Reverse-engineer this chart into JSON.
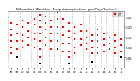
{
  "title": "Milwaukee Weather  Evapotranspiration  per Day (Inches)",
  "background_color": "#ffffff",
  "plot_bg_color": "#ffffff",
  "grid_color": "#888888",
  "ylim": [
    0.0,
    0.28
  ],
  "xlim": [
    -0.5,
    19.5
  ],
  "num_years": 20,
  "legend_label": "ET",
  "legend_color": "#ff0000",
  "red_dots": [
    [
      0,
      0.22
    ],
    [
      0,
      0.19
    ],
    [
      0,
      0.16
    ],
    [
      0,
      0.13
    ],
    [
      0,
      0.1
    ],
    [
      0,
      0.07
    ],
    [
      1,
      0.21
    ],
    [
      1,
      0.17
    ],
    [
      1,
      0.13
    ],
    [
      1,
      0.09
    ],
    [
      2,
      0.23
    ],
    [
      2,
      0.2
    ],
    [
      2,
      0.16
    ],
    [
      2,
      0.13
    ],
    [
      2,
      0.1
    ],
    [
      3,
      0.22
    ],
    [
      3,
      0.18
    ],
    [
      3,
      0.15
    ],
    [
      3,
      0.11
    ],
    [
      4,
      0.24
    ],
    [
      4,
      0.21
    ],
    [
      4,
      0.17
    ],
    [
      4,
      0.14
    ],
    [
      4,
      0.1
    ],
    [
      5,
      0.26
    ],
    [
      5,
      0.23
    ],
    [
      5,
      0.2
    ],
    [
      5,
      0.17
    ],
    [
      5,
      0.13
    ],
    [
      5,
      0.09
    ],
    [
      5,
      0.05
    ],
    [
      6,
      0.25
    ],
    [
      6,
      0.22
    ],
    [
      6,
      0.19
    ],
    [
      6,
      0.15
    ],
    [
      6,
      0.11
    ],
    [
      7,
      0.23
    ],
    [
      7,
      0.2
    ],
    [
      7,
      0.17
    ],
    [
      7,
      0.13
    ],
    [
      7,
      0.09
    ],
    [
      8,
      0.27
    ],
    [
      8,
      0.24
    ],
    [
      8,
      0.2
    ],
    [
      8,
      0.17
    ],
    [
      8,
      0.13
    ],
    [
      9,
      0.24
    ],
    [
      9,
      0.2
    ],
    [
      9,
      0.16
    ],
    [
      9,
      0.12
    ],
    [
      9,
      0.08
    ],
    [
      10,
      0.22
    ],
    [
      10,
      0.18
    ],
    [
      10,
      0.15
    ],
    [
      10,
      0.12
    ],
    [
      10,
      0.08
    ],
    [
      10,
      0.05
    ],
    [
      11,
      0.2
    ],
    [
      11,
      0.17
    ],
    [
      11,
      0.14
    ],
    [
      11,
      0.1
    ],
    [
      11,
      0.07
    ],
    [
      12,
      0.21
    ],
    [
      12,
      0.18
    ],
    [
      12,
      0.14
    ],
    [
      12,
      0.11
    ],
    [
      13,
      0.18
    ],
    [
      13,
      0.15
    ],
    [
      13,
      0.12
    ],
    [
      13,
      0.09
    ],
    [
      14,
      0.16
    ],
    [
      14,
      0.13
    ],
    [
      14,
      0.1
    ],
    [
      14,
      0.07
    ],
    [
      15,
      0.19
    ],
    [
      15,
      0.16
    ],
    [
      15,
      0.13
    ],
    [
      15,
      0.1
    ],
    [
      15,
      0.07
    ],
    [
      16,
      0.17
    ],
    [
      16,
      0.14
    ],
    [
      16,
      0.11
    ],
    [
      16,
      0.08
    ],
    [
      17,
      0.15
    ],
    [
      17,
      0.12
    ],
    [
      17,
      0.09
    ],
    [
      18,
      0.16
    ],
    [
      18,
      0.13
    ],
    [
      18,
      0.1
    ],
    [
      18,
      0.07
    ],
    [
      19,
      0.14
    ],
    [
      19,
      0.11
    ],
    [
      19,
      0.08
    ]
  ],
  "black_dots": [
    [
      1,
      0.05
    ],
    [
      5,
      0.02
    ],
    [
      8,
      0.09
    ],
    [
      10,
      0.02
    ],
    [
      14,
      0.03
    ],
    [
      19,
      0.05
    ]
  ],
  "x_labels": [
    "98",
    "99",
    "00",
    "01",
    "02",
    "03",
    "04",
    "05",
    "06",
    "07",
    "08",
    "09",
    "10",
    "11",
    "12",
    "13",
    "14",
    "15",
    "16",
    "17"
  ],
  "y_ticks": [
    0.05,
    0.1,
    0.15,
    0.2,
    0.25
  ],
  "y_tick_labels": [
    "0.05",
    "0.10",
    "0.15",
    "0.20",
    "0.25"
  ]
}
